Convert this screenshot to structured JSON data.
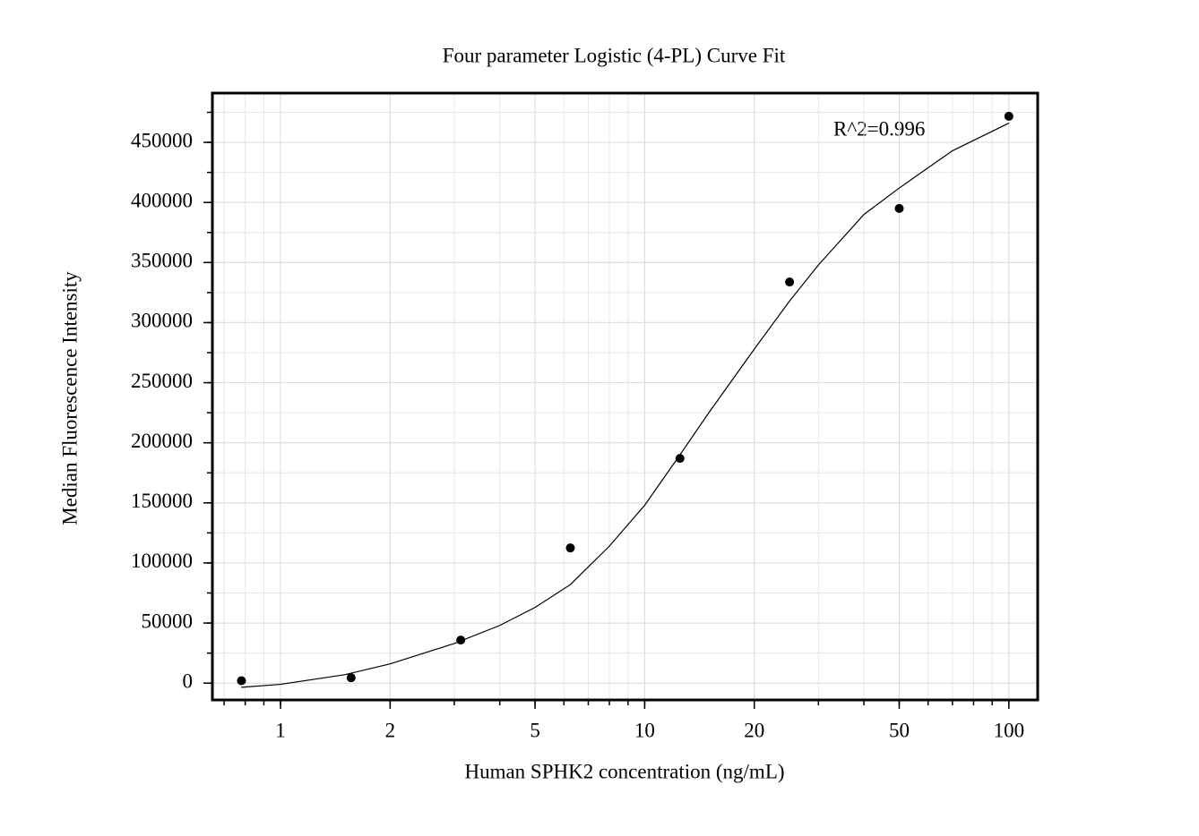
{
  "chart_data": {
    "type": "scatter",
    "title": "Four parameter Logistic (4-PL) Curve Fit",
    "x_label": "Human SPHK2 concentration (ng/mL)",
    "y_label": "Median Fluorescence Intensity",
    "annotation": "R^2=0.996",
    "x_log": true,
    "grid": true,
    "xlim": [
      0.65,
      120
    ],
    "ylim": [
      -14000,
      491000
    ],
    "xticks": [
      1,
      2,
      5,
      10,
      20,
      50,
      100
    ],
    "yticks": [
      0,
      50000,
      100000,
      150000,
      200000,
      250000,
      300000,
      350000,
      400000,
      450000
    ],
    "series": [
      {
        "type": "scatter",
        "color": "#000000",
        "x": [
          0.78125,
          1.5625,
          3.125,
          6.25,
          12.5,
          25,
          50,
          100
        ],
        "values": [
          2000,
          4500,
          35800,
          112500,
          187000,
          333800,
          395000,
          471700
        ]
      },
      {
        "type": "line",
        "color": "#000000",
        "x": [
          0.78,
          1,
          1.5,
          2,
          3,
          4,
          5,
          6.25,
          8,
          10,
          12.5,
          15,
          20,
          25,
          30,
          40,
          50,
          70,
          100
        ],
        "values": [
          -3500,
          -1000,
          7000,
          16000,
          33000,
          48000,
          63000,
          82000,
          114000,
          148000,
          190000,
          225000,
          278000,
          318000,
          348000,
          390000,
          412000,
          443000,
          466000
        ]
      }
    ]
  }
}
